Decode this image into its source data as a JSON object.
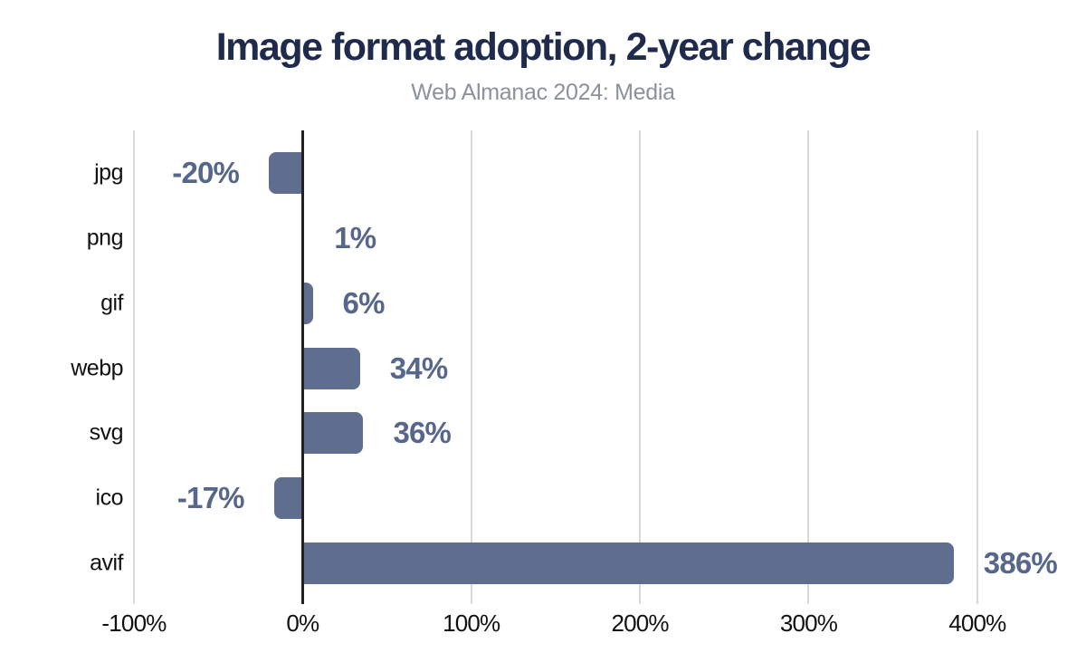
{
  "chart_data": {
    "type": "bar",
    "orientation": "horizontal",
    "title": "Image format adoption, 2-year change",
    "subtitle": "Web Almanac 2024: Media",
    "categories": [
      "jpg",
      "png",
      "gif",
      "webp",
      "svg",
      "ico",
      "avif"
    ],
    "values": [
      -20,
      1,
      6,
      34,
      36,
      -17,
      386
    ],
    "value_labels": [
      "-20%",
      "1%",
      "6%",
      "34%",
      "36%",
      "-17%",
      "386%"
    ],
    "xlabel": "",
    "ylabel": "",
    "xlim": [
      -100,
      443
    ],
    "x_ticks": [
      {
        "value": -100,
        "label": "-100%"
      },
      {
        "value": 0,
        "label": "0%"
      },
      {
        "value": 100,
        "label": "100%"
      },
      {
        "value": 200,
        "label": "200%"
      },
      {
        "value": 300,
        "label": "300%"
      },
      {
        "value": 400,
        "label": "400%"
      }
    ],
    "grid": "vertical",
    "legend": "none",
    "colors": {
      "bar": "#5f6e8e",
      "value_label": "#56678b",
      "title": "#1f2b4d",
      "subtitle": "#8b919d",
      "zero_axis_line": "#212121",
      "gridline": "#d9d9d9",
      "tick_text": "#111111"
    }
  }
}
